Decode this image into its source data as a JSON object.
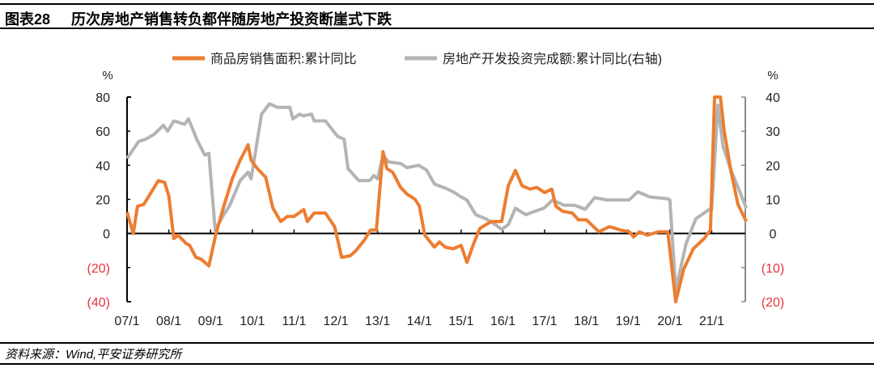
{
  "header": {
    "figure_no": "图表28",
    "title": "历次房地产销售转负都伴随房地产投资断崖式下跌"
  },
  "footer": {
    "source": "资料来源：Wind,平安证券研究所"
  },
  "chart_data": {
    "type": "line",
    "title": "历次房地产销售转负都伴随房地产投资断崖式下跌",
    "xlabel": "",
    "ylabel": "%",
    "y2label": "%",
    "ylim": [
      -40,
      80
    ],
    "y2lim": [
      -20,
      40
    ],
    "xlim": [
      2007,
      2021.83
    ],
    "yticks": [
      "80",
      "60",
      "40",
      "20",
      "0",
      "(20)",
      "(40)"
    ],
    "yticks_values": [
      80,
      60,
      40,
      20,
      0,
      -20,
      -40
    ],
    "y2ticks": [
      "40",
      "30",
      "20",
      "10",
      "0",
      "(10)",
      "(20)"
    ],
    "y2ticks_values": [
      40,
      30,
      20,
      10,
      0,
      -10,
      -20
    ],
    "xticks": [
      "07/1",
      "08/1",
      "09/1",
      "10/1",
      "11/1",
      "12/1",
      "13/1",
      "14/1",
      "15/1",
      "16/1",
      "17/1",
      "18/1",
      "19/1",
      "20/1",
      "21/1"
    ],
    "legend_position": "top-center",
    "colors": {
      "sales": "#ed7d31",
      "invest": "#b4b4b4",
      "negative_tick": "#e8333f"
    },
    "series": [
      {
        "name": "商品房销售面积:累计同比",
        "axis": "left",
        "points": [
          [
            2007.0,
            12.5
          ],
          [
            2007.15,
            0
          ],
          [
            2007.25,
            16
          ],
          [
            2007.4,
            17
          ],
          [
            2007.75,
            31
          ],
          [
            2007.9,
            30
          ],
          [
            2008.0,
            22
          ],
          [
            2008.12,
            -3
          ],
          [
            2008.22,
            -1
          ],
          [
            2008.42,
            -6
          ],
          [
            2008.5,
            -7
          ],
          [
            2008.65,
            -14
          ],
          [
            2008.77,
            -15
          ],
          [
            2008.96,
            -19
          ],
          [
            2009.13,
            0
          ],
          [
            2009.33,
            17
          ],
          [
            2009.52,
            32
          ],
          [
            2009.71,
            43
          ],
          [
            2009.9,
            52
          ],
          [
            2009.97,
            43
          ],
          [
            2010.12,
            38
          ],
          [
            2010.32,
            33
          ],
          [
            2010.49,
            15
          ],
          [
            2010.68,
            7
          ],
          [
            2010.84,
            10
          ],
          [
            2011.0,
            10
          ],
          [
            2011.23,
            14
          ],
          [
            2011.32,
            7
          ],
          [
            2011.48,
            12
          ],
          [
            2011.75,
            12
          ],
          [
            2011.97,
            4
          ],
          [
            2012.14,
            -14
          ],
          [
            2012.35,
            -13
          ],
          [
            2012.48,
            -10
          ],
          [
            2012.68,
            -4
          ],
          [
            2012.83,
            2
          ],
          [
            2012.97,
            2
          ],
          [
            2013.13,
            48
          ],
          [
            2013.22,
            38
          ],
          [
            2013.36,
            36
          ],
          [
            2013.55,
            27
          ],
          [
            2013.71,
            23
          ],
          [
            2013.9,
            20
          ],
          [
            2014.0,
            16
          ],
          [
            2014.13,
            -1
          ],
          [
            2014.36,
            -8
          ],
          [
            2014.48,
            -5
          ],
          [
            2014.62,
            -8
          ],
          [
            2014.81,
            -9
          ],
          [
            2015.0,
            -7
          ],
          [
            2015.14,
            -17
          ],
          [
            2015.3,
            -6
          ],
          [
            2015.45,
            3
          ],
          [
            2015.72,
            7
          ],
          [
            2015.97,
            7
          ],
          [
            2016.13,
            28
          ],
          [
            2016.3,
            37
          ],
          [
            2016.46,
            28
          ],
          [
            2016.65,
            26
          ],
          [
            2016.81,
            27
          ],
          [
            2017.0,
            24
          ],
          [
            2017.17,
            26
          ],
          [
            2017.27,
            16
          ],
          [
            2017.43,
            13
          ],
          [
            2017.66,
            12
          ],
          [
            2017.81,
            8
          ],
          [
            2018.0,
            8
          ],
          [
            2018.3,
            1
          ],
          [
            2018.55,
            4
          ],
          [
            2018.82,
            2
          ],
          [
            2019.03,
            1
          ],
          [
            2019.13,
            -2
          ],
          [
            2019.27,
            1
          ],
          [
            2019.46,
            -1
          ],
          [
            2019.72,
            1
          ],
          [
            2019.95,
            1
          ],
          [
            2020.14,
            -40
          ],
          [
            2020.33,
            -21
          ],
          [
            2020.56,
            -9
          ],
          [
            2020.82,
            -3
          ],
          [
            2020.97,
            2
          ],
          [
            2021.07,
            80
          ],
          [
            2021.21,
            80
          ],
          [
            2021.3,
            60
          ],
          [
            2021.46,
            37
          ],
          [
            2021.63,
            17
          ],
          [
            2021.83,
            7
          ]
        ]
      },
      {
        "name": "房地产开发投资完成额:累计同比(右轴)",
        "axis": "right",
        "points": [
          [
            2007.0,
            22
          ],
          [
            2007.28,
            27
          ],
          [
            2007.44,
            27.6
          ],
          [
            2007.64,
            29
          ],
          [
            2007.87,
            31.7
          ],
          [
            2007.97,
            30
          ],
          [
            2008.12,
            33
          ],
          [
            2008.38,
            32
          ],
          [
            2008.47,
            33.6
          ],
          [
            2008.67,
            27.6
          ],
          [
            2008.86,
            23
          ],
          [
            2008.96,
            23.5
          ],
          [
            2009.11,
            1
          ],
          [
            2009.29,
            5
          ],
          [
            2009.45,
            8
          ],
          [
            2009.71,
            15.5
          ],
          [
            2009.9,
            18
          ],
          [
            2009.97,
            16
          ],
          [
            2010.22,
            35
          ],
          [
            2010.41,
            38
          ],
          [
            2010.6,
            37
          ],
          [
            2010.8,
            37
          ],
          [
            2010.9,
            37
          ],
          [
            2010.97,
            33.6
          ],
          [
            2011.13,
            35
          ],
          [
            2011.22,
            34.5
          ],
          [
            2011.42,
            35
          ],
          [
            2011.48,
            33
          ],
          [
            2011.75,
            33
          ],
          [
            2012.04,
            28.5
          ],
          [
            2012.2,
            27.6
          ],
          [
            2012.29,
            19
          ],
          [
            2012.55,
            15.5
          ],
          [
            2012.81,
            15.5
          ],
          [
            2012.91,
            17
          ],
          [
            2013.0,
            16
          ],
          [
            2013.13,
            23
          ],
          [
            2013.26,
            21
          ],
          [
            2013.55,
            20.5
          ],
          [
            2013.71,
            19.3
          ],
          [
            2013.98,
            20
          ],
          [
            2014.17,
            18.6
          ],
          [
            2014.36,
            14.5
          ],
          [
            2014.62,
            13.3
          ],
          [
            2014.81,
            12.2
          ],
          [
            2015.0,
            10.7
          ],
          [
            2015.14,
            9.8
          ],
          [
            2015.35,
            5.5
          ],
          [
            2015.59,
            4.3
          ],
          [
            2015.82,
            2.6
          ],
          [
            2015.97,
            1.2
          ],
          [
            2016.13,
            2.6
          ],
          [
            2016.3,
            7.4
          ],
          [
            2016.55,
            5.5
          ],
          [
            2016.81,
            6.7
          ],
          [
            2016.98,
            7.4
          ],
          [
            2017.19,
            9.8
          ],
          [
            2017.46,
            8.3
          ],
          [
            2017.72,
            8.3
          ],
          [
            2017.97,
            7.1
          ],
          [
            2018.2,
            10.5
          ],
          [
            2018.49,
            9.8
          ],
          [
            2019.02,
            9.8
          ],
          [
            2019.23,
            12.2
          ],
          [
            2019.52,
            10.7
          ],
          [
            2019.95,
            10.2
          ],
          [
            2020.0,
            9.8
          ],
          [
            2020.14,
            -16.5
          ],
          [
            2020.39,
            -2.9
          ],
          [
            2020.62,
            4.3
          ],
          [
            2020.95,
            7.1
          ],
          [
            2021.0,
            7.1
          ],
          [
            2021.15,
            37.6
          ],
          [
            2021.27,
            25.7
          ],
          [
            2021.46,
            18.6
          ],
          [
            2021.65,
            13
          ],
          [
            2021.83,
            7.4
          ]
        ]
      }
    ]
  }
}
